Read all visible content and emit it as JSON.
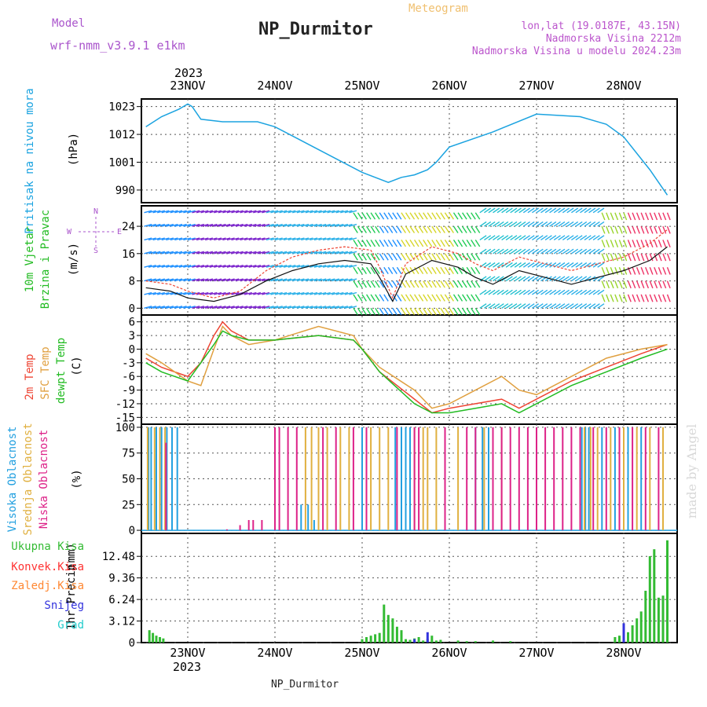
{
  "header": {
    "model_label": "Model",
    "model_name": "wrf-nmm_v3.9.1 e1km",
    "title": "NP_Durmitor",
    "chart_kind": "Meteogram",
    "coords": "lon,lat (19.0187E, 43.15N)",
    "elevation": "Nadmorska Visina 2212m",
    "model_elevation": "Nadmorska Visina u modelu 2024.23m"
  },
  "time_axis": {
    "year": "2023",
    "days": [
      "23NOV",
      "24NOV",
      "25NOV",
      "26NOV",
      "27NOV",
      "28NOV"
    ],
    "footer": "NP_Durmitor"
  },
  "watermark": "made by Angel",
  "colors": {
    "pressure": "#1ba3e0",
    "temp2m": "#ee4433",
    "sfc": "#e0a040",
    "dewpt": "#22bb22",
    "cloud_high": "#22a0e0",
    "cloud_mid": "#e0b040",
    "cloud_low": "#dd2288",
    "precip_total": "#33bb33",
    "precip_conv": "#ff3333",
    "precip_frz": "#ff8833",
    "precip_snow": "#3333dd",
    "precip_hail": "#22cccc",
    "grid": "#555555"
  },
  "chart_data": [
    {
      "id": "pressure",
      "type": "line",
      "ylabel": "Pritisak na nivou mora",
      "unit": "(hPa)",
      "yticks": [
        990,
        1001,
        1012,
        1023
      ],
      "ylim": [
        985,
        1026
      ],
      "series": [
        {
          "x": [
            -0.48,
            -0.3,
            -0.1,
            0.0,
            0.05,
            0.15,
            0.4,
            0.8,
            1.0,
            1.5,
            2.0,
            2.3,
            2.45,
            2.6,
            2.75,
            2.85,
            3.0,
            3.5,
            4.0,
            4.5,
            4.8,
            5.0,
            5.3,
            5.5
          ],
          "y": [
            1015,
            1019,
            1022,
            1024,
            1023,
            1018,
            1017,
            1017,
            1015,
            1006,
            997,
            993,
            995,
            996,
            998,
            1001,
            1007,
            1013,
            1020,
            1019,
            1016,
            1011,
            998,
            988
          ]
        }
      ]
    },
    {
      "id": "wind",
      "type": "line",
      "ylabel": "10m Vjetar Brzina i Pravac",
      "unit": "(m/s)",
      "yticks": [
        0,
        8,
        16,
        24
      ],
      "ylim": [
        -2,
        30
      ],
      "compass": {
        "n": "N",
        "s": "S",
        "e": "E",
        "w": "W"
      },
      "series": [
        {
          "name": "speed",
          "x": [
            -0.48,
            -0.2,
            0.0,
            0.3,
            0.6,
            0.9,
            1.2,
            1.5,
            1.8,
            2.1,
            2.2,
            2.35,
            2.5,
            2.8,
            3.1,
            3.3,
            3.5,
            3.8,
            4.1,
            4.4,
            4.7,
            5.0,
            5.3,
            5.5
          ],
          "y": [
            6,
            5,
            3,
            2,
            4,
            8,
            11,
            13,
            14,
            13,
            9,
            2,
            10,
            14,
            12,
            9,
            7,
            11,
            9,
            7,
            9,
            11,
            14,
            18
          ]
        },
        {
          "name": "gust",
          "x": [
            -0.48,
            -0.2,
            0.0,
            0.3,
            0.6,
            0.9,
            1.2,
            1.5,
            1.8,
            2.1,
            2.2,
            2.35,
            2.5,
            2.8,
            3.1,
            3.3,
            3.5,
            3.8,
            4.1,
            4.4,
            4.7,
            5.0,
            5.3,
            5.5
          ],
          "y": [
            8,
            7,
            5,
            3,
            5,
            11,
            15,
            17,
            18,
            17,
            12,
            3,
            13,
            18,
            16,
            13,
            11,
            15,
            13,
            11,
            13,
            15,
            19,
            23
          ]
        }
      ]
    },
    {
      "id": "temperature",
      "type": "line",
      "ylabel": "2m Temp / SFC Temp / dewpt Temp",
      "unit": "(C)",
      "yticks": [
        -15,
        -12,
        -9,
        -6,
        -3,
        0,
        3,
        6
      ],
      "ylim": [
        -16.5,
        7.5
      ],
      "series": [
        {
          "name": "2m Temp",
          "x": [
            -0.48,
            -0.3,
            0.0,
            0.15,
            0.3,
            0.4,
            0.5,
            0.7,
            1.0,
            1.5,
            1.9,
            2.0,
            2.2,
            2.6,
            2.8,
            3.0,
            3.3,
            3.6,
            3.8,
            4.0,
            4.4,
            4.8,
            5.2,
            5.5
          ],
          "y": [
            -2,
            -4,
            -6,
            -3,
            3,
            6,
            4,
            2,
            2,
            3,
            2,
            0,
            -5,
            -11,
            -14,
            -13,
            -12,
            -11,
            -13,
            -11,
            -7,
            -4,
            -1,
            1
          ]
        },
        {
          "name": "SFC Temp",
          "x": [
            -0.48,
            -0.3,
            0.0,
            0.15,
            0.3,
            0.4,
            0.5,
            0.7,
            1.0,
            1.5,
            1.9,
            2.0,
            2.2,
            2.6,
            2.8,
            3.0,
            3.3,
            3.6,
            3.8,
            4.0,
            4.4,
            4.8,
            5.2,
            5.5
          ],
          "y": [
            -1,
            -3,
            -7,
            -8,
            0,
            5,
            3,
            1,
            2,
            5,
            3,
            0,
            -4,
            -9,
            -13,
            -12,
            -9,
            -6,
            -9,
            -10,
            -6,
            -2,
            0,
            1
          ]
        },
        {
          "name": "dewpt Temp",
          "x": [
            -0.48,
            -0.3,
            0.0,
            0.15,
            0.3,
            0.4,
            0.5,
            0.7,
            1.0,
            1.5,
            1.9,
            2.0,
            2.2,
            2.6,
            2.8,
            3.0,
            3.3,
            3.6,
            3.8,
            4.0,
            4.4,
            4.8,
            5.2,
            5.5
          ],
          "y": [
            -3,
            -5,
            -7,
            -3,
            1,
            4,
            3,
            2,
            2,
            3,
            2,
            0,
            -5,
            -12,
            -14,
            -14,
            -13,
            -12,
            -14,
            -12,
            -8,
            -5,
            -2,
            0
          ]
        }
      ]
    },
    {
      "id": "clouds",
      "type": "bar",
      "ylabel": "Visoka / Srednja / Niska Oblacnost",
      "unit": "(%)",
      "yticks": [
        0,
        25,
        50,
        75,
        100
      ],
      "ylim": [
        -3,
        103
      ],
      "series": [
        {
          "name": "Visoka Oblacnost",
          "x": [
            -0.45,
            -0.42,
            -0.36,
            -0.3,
            -0.24,
            -0.18,
            -0.12,
            1.3,
            1.38,
            1.45,
            2.0,
            2.38,
            2.45,
            2.5,
            2.55,
            3.3,
            3.38,
            3.45,
            4.52,
            4.56,
            4.6,
            4.75,
            4.9,
            5.05,
            5.2
          ],
          "y": [
            100,
            100,
            100,
            100,
            100,
            100,
            100,
            25,
            25,
            10,
            100,
            100,
            100,
            100,
            100,
            100,
            100,
            100,
            100,
            100,
            100,
            100,
            100,
            100,
            100
          ]
        },
        {
          "name": "Srednja Oblacnost",
          "x": [
            -0.46,
            -0.38,
            -0.32,
            -0.26,
            1.35,
            1.42,
            1.5,
            1.6,
            1.75,
            1.85,
            2.1,
            2.2,
            2.3,
            2.6,
            2.7,
            2.75,
            2.85,
            3.1,
            3.4,
            3.6,
            4.55,
            4.62,
            4.7,
            4.85,
            5.0,
            5.15,
            5.3,
            5.45
          ],
          "y": [
            100,
            100,
            100,
            100,
            100,
            100,
            100,
            100,
            100,
            100,
            100,
            100,
            100,
            100,
            100,
            100,
            100,
            100,
            100,
            100,
            100,
            100,
            100,
            100,
            100,
            100,
            100,
            100
          ]
        },
        {
          "name": "Niska Oblacnost",
          "x": [
            -0.25,
            0.1,
            0.25,
            0.45,
            0.6,
            0.7,
            0.75,
            0.85,
            1.0,
            1.05,
            1.15,
            1.25,
            1.55,
            1.7,
            1.9,
            2.05,
            2.4,
            2.6,
            2.65,
            2.95,
            3.2,
            3.3,
            3.5,
            3.6,
            3.7,
            3.8,
            3.9,
            4.0,
            4.1,
            4.2,
            4.3,
            4.4,
            4.5,
            4.65,
            4.8,
            4.95,
            5.1,
            5.25,
            5.4
          ],
          "y": [
            85,
            0,
            0,
            1,
            5,
            10,
            10,
            10,
            100,
            100,
            100,
            100,
            100,
            100,
            100,
            100,
            100,
            100,
            100,
            100,
            100,
            100,
            100,
            100,
            100,
            100,
            100,
            100,
            100,
            100,
            100,
            100,
            100,
            100,
            100,
            100,
            100,
            100,
            100
          ]
        }
      ]
    },
    {
      "id": "precip",
      "type": "bar",
      "ylabel": "1hr Precip",
      "unit": "(mm)",
      "yticks": [
        0,
        3.12,
        6.24,
        9.36,
        12.48
      ],
      "ylim": [
        0,
        15.8
      ],
      "legend": [
        "Ukupna Kisa",
        "Konvek.Kisa",
        "Zaledj.Kisa",
        "Snijeg",
        "Grad"
      ],
      "series": [
        {
          "name": "Ukupna Kisa",
          "x": [
            -0.44,
            -0.4,
            -0.36,
            -0.32,
            -0.28,
            2.0,
            2.05,
            2.1,
            2.15,
            2.2,
            2.25,
            2.3,
            2.35,
            2.4,
            2.45,
            2.5,
            2.55,
            2.6,
            2.65,
            2.7,
            2.75,
            2.8,
            2.85,
            2.9,
            3.1,
            3.2,
            3.3,
            3.5,
            3.7,
            4.9,
            4.95,
            5.0,
            5.05,
            5.1,
            5.15,
            5.2,
            5.25,
            5.3,
            5.35,
            5.4,
            5.45,
            5.5
          ],
          "y": [
            1.8,
            1.4,
            1.0,
            0.8,
            0.6,
            0.5,
            0.8,
            1.0,
            1.2,
            1.4,
            5.5,
            4.0,
            3.5,
            2.3,
            1.8,
            0.5,
            0.4,
            0.6,
            0.8,
            0.3,
            0.5,
            1.0,
            0.3,
            0.4,
            0.3,
            0.2,
            0.2,
            0.3,
            0.2,
            0.8,
            1.0,
            1.2,
            1.5,
            2.5,
            3.5,
            4.5,
            7.5,
            12.5,
            13.5,
            6.5,
            6.8,
            14.8
          ]
        },
        {
          "name": "Snijeg",
          "x": [
            2.6,
            2.75,
            5.0
          ],
          "y": [
            0.5,
            1.5,
            2.8
          ]
        }
      ]
    }
  ]
}
